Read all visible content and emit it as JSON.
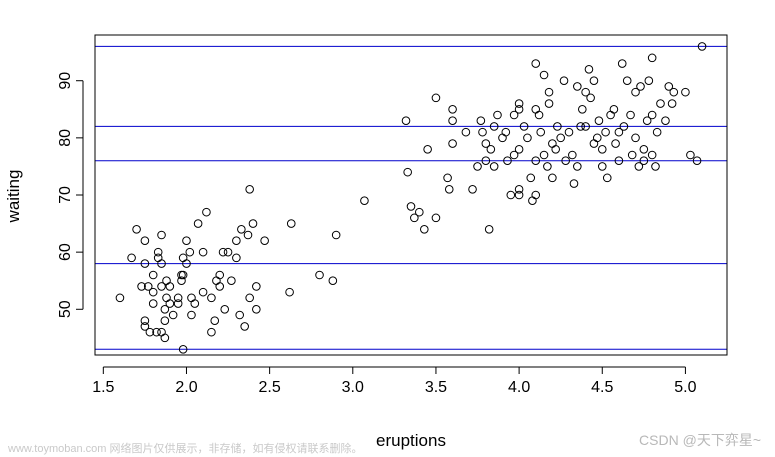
{
  "chart_data": {
    "type": "scatter",
    "title": "",
    "xlabel": "eruptions",
    "ylabel": "waiting",
    "xlim": [
      1.45,
      5.25
    ],
    "ylim": [
      42,
      98
    ],
    "xticks": [
      1.5,
      2.0,
      2.5,
      3.0,
      3.5,
      4.0,
      4.5,
      5.0
    ],
    "xtick_labels": [
      "1.5",
      "2.0",
      "2.5",
      "3.0",
      "3.5",
      "4.0",
      "4.5",
      "5.0"
    ],
    "yticks": [
      50,
      60,
      70,
      80,
      90
    ],
    "ytick_labels": [
      "50",
      "60",
      "70",
      "80",
      "90"
    ],
    "hlines": [
      43,
      58,
      76,
      82,
      96
    ],
    "hline_color": "#0000cc",
    "point_color": "#000000",
    "grid": false,
    "points": [
      [
        1.6,
        52
      ],
      [
        1.67,
        59
      ],
      [
        1.7,
        64
      ],
      [
        1.73,
        54
      ],
      [
        1.75,
        48
      ],
      [
        1.75,
        47
      ],
      [
        1.75,
        58
      ],
      [
        1.75,
        62
      ],
      [
        1.77,
        54
      ],
      [
        1.78,
        46
      ],
      [
        1.8,
        51
      ],
      [
        1.8,
        53
      ],
      [
        1.8,
        56
      ],
      [
        1.82,
        46
      ],
      [
        1.83,
        60
      ],
      [
        1.83,
        59
      ],
      [
        1.85,
        63
      ],
      [
        1.85,
        54
      ],
      [
        1.85,
        58
      ],
      [
        1.85,
        46
      ],
      [
        1.87,
        45
      ],
      [
        1.87,
        50
      ],
      [
        1.87,
        48
      ],
      [
        1.88,
        52
      ],
      [
        1.88,
        55
      ],
      [
        1.9,
        54
      ],
      [
        1.9,
        51
      ],
      [
        1.92,
        49
      ],
      [
        1.95,
        51
      ],
      [
        1.95,
        52
      ],
      [
        1.97,
        55
      ],
      [
        1.97,
        56
      ],
      [
        1.98,
        43
      ],
      [
        1.98,
        56
      ],
      [
        1.98,
        59
      ],
      [
        2.0,
        62
      ],
      [
        2.0,
        58
      ],
      [
        2.02,
        60
      ],
      [
        2.03,
        52
      ],
      [
        2.03,
        49
      ],
      [
        2.05,
        51
      ],
      [
        2.07,
        65
      ],
      [
        2.1,
        53
      ],
      [
        2.1,
        60
      ],
      [
        2.12,
        67
      ],
      [
        2.15,
        52
      ],
      [
        2.15,
        46
      ],
      [
        2.17,
        48
      ],
      [
        2.18,
        55
      ],
      [
        2.2,
        56
      ],
      [
        2.2,
        54
      ],
      [
        2.22,
        60
      ],
      [
        2.23,
        50
      ],
      [
        2.25,
        60
      ],
      [
        2.27,
        55
      ],
      [
        2.3,
        59
      ],
      [
        2.3,
        62
      ],
      [
        2.32,
        49
      ],
      [
        2.33,
        64
      ],
      [
        2.35,
        47
      ],
      [
        2.37,
        63
      ],
      [
        2.38,
        71
      ],
      [
        2.38,
        52
      ],
      [
        2.4,
        65
      ],
      [
        2.42,
        50
      ],
      [
        2.42,
        54
      ],
      [
        2.47,
        62
      ],
      [
        2.62,
        53
      ],
      [
        2.63,
        65
      ],
      [
        2.8,
        56
      ],
      [
        2.88,
        55
      ],
      [
        2.9,
        63
      ],
      [
        3.07,
        69
      ],
      [
        3.32,
        83
      ],
      [
        3.33,
        74
      ],
      [
        3.35,
        68
      ],
      [
        3.37,
        66
      ],
      [
        3.4,
        67
      ],
      [
        3.43,
        64
      ],
      [
        3.45,
        78
      ],
      [
        3.5,
        87
      ],
      [
        3.5,
        66
      ],
      [
        3.57,
        73
      ],
      [
        3.58,
        71
      ],
      [
        3.6,
        85
      ],
      [
        3.6,
        83
      ],
      [
        3.6,
        79
      ],
      [
        3.68,
        81
      ],
      [
        3.72,
        71
      ],
      [
        3.75,
        75
      ],
      [
        3.77,
        83
      ],
      [
        3.78,
        81
      ],
      [
        3.8,
        76
      ],
      [
        3.8,
        79
      ],
      [
        3.82,
        64
      ],
      [
        3.83,
        78
      ],
      [
        3.85,
        75
      ],
      [
        3.85,
        82
      ],
      [
        3.87,
        84
      ],
      [
        3.9,
        80
      ],
      [
        3.92,
        81
      ],
      [
        3.93,
        76
      ],
      [
        3.95,
        70
      ],
      [
        3.97,
        84
      ],
      [
        3.97,
        77
      ],
      [
        4.0,
        86
      ],
      [
        4.0,
        78
      ],
      [
        4.0,
        71
      ],
      [
        4.0,
        70
      ],
      [
        4.0,
        85
      ],
      [
        4.03,
        82
      ],
      [
        4.05,
        80
      ],
      [
        4.07,
        73
      ],
      [
        4.08,
        69
      ],
      [
        4.1,
        93
      ],
      [
        4.1,
        85
      ],
      [
        4.1,
        76
      ],
      [
        4.1,
        70
      ],
      [
        4.12,
        84
      ],
      [
        4.13,
        81
      ],
      [
        4.15,
        77
      ],
      [
        4.15,
        91
      ],
      [
        4.17,
        75
      ],
      [
        4.18,
        88
      ],
      [
        4.18,
        86
      ],
      [
        4.2,
        73
      ],
      [
        4.2,
        79
      ],
      [
        4.22,
        78
      ],
      [
        4.23,
        82
      ],
      [
        4.25,
        80
      ],
      [
        4.27,
        90
      ],
      [
        4.28,
        76
      ],
      [
        4.3,
        81
      ],
      [
        4.32,
        77
      ],
      [
        4.33,
        72
      ],
      [
        4.35,
        89
      ],
      [
        4.35,
        75
      ],
      [
        4.37,
        82
      ],
      [
        4.38,
        85
      ],
      [
        4.4,
        82
      ],
      [
        4.4,
        88
      ],
      [
        4.42,
        92
      ],
      [
        4.43,
        87
      ],
      [
        4.45,
        79
      ],
      [
        4.45,
        90
      ],
      [
        4.47,
        80
      ],
      [
        4.48,
        83
      ],
      [
        4.5,
        75
      ],
      [
        4.5,
        78
      ],
      [
        4.52,
        81
      ],
      [
        4.53,
        73
      ],
      [
        4.55,
        84
      ],
      [
        4.57,
        85
      ],
      [
        4.58,
        79
      ],
      [
        4.6,
        76
      ],
      [
        4.6,
        81
      ],
      [
        4.62,
        93
      ],
      [
        4.63,
        82
      ],
      [
        4.65,
        90
      ],
      [
        4.67,
        84
      ],
      [
        4.68,
        77
      ],
      [
        4.7,
        88
      ],
      [
        4.7,
        80
      ],
      [
        4.72,
        75
      ],
      [
        4.73,
        89
      ],
      [
        4.75,
        78
      ],
      [
        4.75,
        76
      ],
      [
        4.77,
        83
      ],
      [
        4.78,
        90
      ],
      [
        4.8,
        94
      ],
      [
        4.8,
        84
      ],
      [
        4.8,
        77
      ],
      [
        4.82,
        75
      ],
      [
        4.83,
        81
      ],
      [
        4.85,
        86
      ],
      [
        4.88,
        83
      ],
      [
        4.9,
        89
      ],
      [
        4.92,
        86
      ],
      [
        4.93,
        88
      ],
      [
        5.0,
        88
      ],
      [
        5.03,
        77
      ],
      [
        5.07,
        76
      ],
      [
        5.1,
        96
      ]
    ]
  },
  "watermarks": {
    "left": "www.toymoban.com 网络图片仅供展示，非存储，如有侵权请联系删除。",
    "right": "CSDN @天下弈星~"
  }
}
